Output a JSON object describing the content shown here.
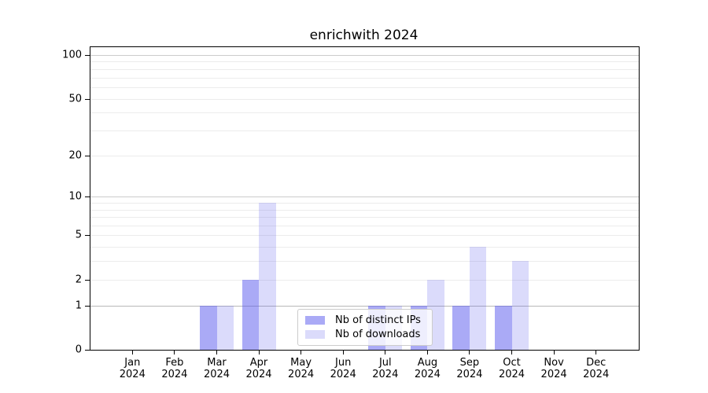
{
  "chart_data": {
    "type": "bar",
    "title": "enrichwith 2024",
    "x_categories": [
      "Jan",
      "Feb",
      "Mar",
      "Apr",
      "May",
      "Jun",
      "Jul",
      "Aug",
      "Sep",
      "Oct",
      "Nov",
      "Dec"
    ],
    "x_year_label": "2024",
    "series": [
      {
        "name": "Nb of distinct IPs",
        "color": "rgba(85,85,238,0.50)",
        "values": [
          0,
          0,
          1,
          2,
          0,
          0,
          1,
          1,
          1,
          1,
          0,
          0
        ]
      },
      {
        "name": "Nb of downloads",
        "color": "rgba(85,85,238,0.21)",
        "values": [
          0,
          0,
          1,
          9,
          0,
          0,
          1,
          2,
          4,
          3,
          0,
          0
        ]
      }
    ],
    "yscale": "log1p",
    "ylim": [
      0,
      113
    ],
    "yticks": [
      0,
      1,
      2,
      5,
      10,
      20,
      50,
      100
    ],
    "grid_values": [
      1,
      2,
      3,
      4,
      5,
      6,
      7,
      8,
      9,
      10,
      20,
      30,
      40,
      50,
      60,
      70,
      80,
      90,
      100
    ],
    "grid_major_values": [
      1,
      10,
      100
    ],
    "legend_position": "lower-center",
    "grid": true
  },
  "colors": {
    "bar_dark_flat": "#aaaaf6",
    "bar_light_flat": "#ddddfc",
    "grid_minor": "#ececec",
    "grid_major_one": "#b8b8b8",
    "grid_major": "#cccccc",
    "axis": "#000000",
    "legend_border": "#cccccc"
  }
}
